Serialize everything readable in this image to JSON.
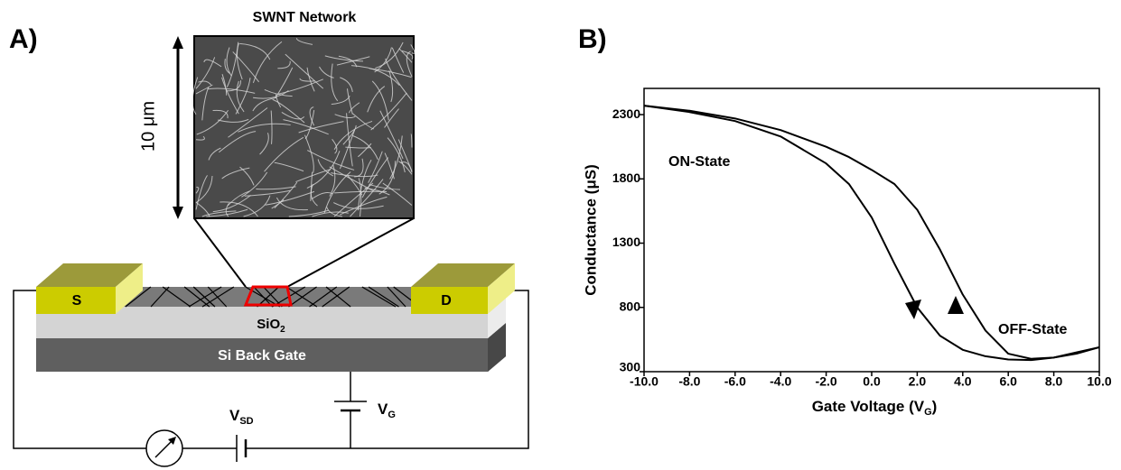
{
  "panel_a": {
    "label": "A)",
    "image_title": "SWNT Network",
    "scale": "10 μm",
    "source": "S",
    "drain": "D",
    "oxide": [
      "SiO",
      "2"
    ],
    "gate": "Si Back Gate",
    "vsd": [
      "V",
      "SD"
    ],
    "vg": [
      "V",
      "G"
    ]
  },
  "chart_data": {
    "type": "line",
    "panel_label": "B)",
    "xlabel": [
      "Gate Voltage (V",
      "G",
      ")"
    ],
    "ylabel": "Conductance (μS)",
    "annotations": [
      "ON-State",
      "OFF-State"
    ],
    "x": [
      -10,
      -8,
      -6,
      -4,
      -2,
      -1,
      0,
      1,
      2,
      3,
      4,
      5,
      6,
      7,
      8,
      9,
      10
    ],
    "series": [
      {
        "color": "#000000",
        "values": [
          2370,
          2330,
          2270,
          2180,
          2050,
          1970,
          1870,
          1760,
          1560,
          1250,
          900,
          620,
          440,
          400,
          410,
          440,
          490
        ]
      },
      {
        "color": "#000000",
        "values": [
          2370,
          2320,
          2250,
          2130,
          1920,
          1760,
          1500,
          1140,
          800,
          580,
          470,
          420,
          395,
          390,
          410,
          450,
          490
        ]
      }
    ],
    "xlim": [
      -10,
      10
    ],
    "xticks": [
      {
        "value": -10,
        "label": "-10.0"
      },
      {
        "value": -8,
        "label": "-8.0"
      },
      {
        "value": -6,
        "label": "-6.0"
      },
      {
        "value": -4,
        "label": "-4.0"
      },
      {
        "value": -2,
        "label": "-2.0"
      },
      {
        "value": 0,
        "label": "0.0"
      },
      {
        "value": 2,
        "label": "2.0"
      },
      {
        "value": 4,
        "label": "4.0"
      },
      {
        "value": 6,
        "label": "6.0"
      },
      {
        "value": 8,
        "label": "8.0"
      },
      {
        "value": 10,
        "label": "10.0"
      }
    ],
    "ylim": [
      300,
      2504
    ],
    "yticks": [
      300,
      800,
      1300,
      1800,
      2300
    ],
    "grid": false
  }
}
